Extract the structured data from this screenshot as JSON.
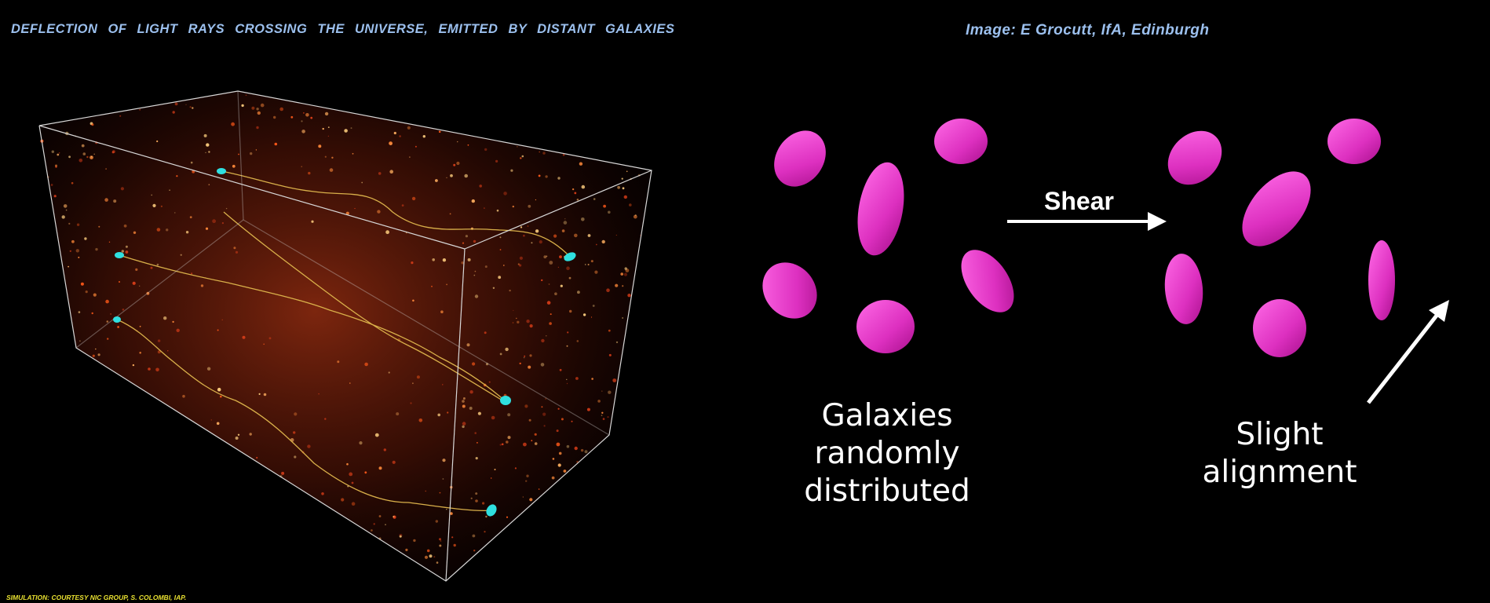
{
  "header": {
    "title": "DEFLECTION  OF  LIGHT RAYS  CROSSING  THE UNIVERSE,  EMITTED BY  DISTANT GALAXIES",
    "credit": "Image: E Grocutt, IfA, Edinburgh"
  },
  "footer": {
    "simulation_credit": "SIMULATION: COURTESY NIC GROUP,    S.   COLOMBI,  IAP."
  },
  "diagram": {
    "shear_label": "Shear",
    "random_caption_line1": "Galaxies randomly",
    "random_caption_line2": "distributed",
    "alignment_caption": "Slight alignment"
  },
  "colors": {
    "header_text": "#9cc0ee",
    "footer_text": "#e8e030",
    "galaxy_fill": "#e63cc8",
    "source_marker": "#2fe0e0",
    "light_ray": "#d9b04a",
    "matter_glow": "#ff7a2a"
  }
}
